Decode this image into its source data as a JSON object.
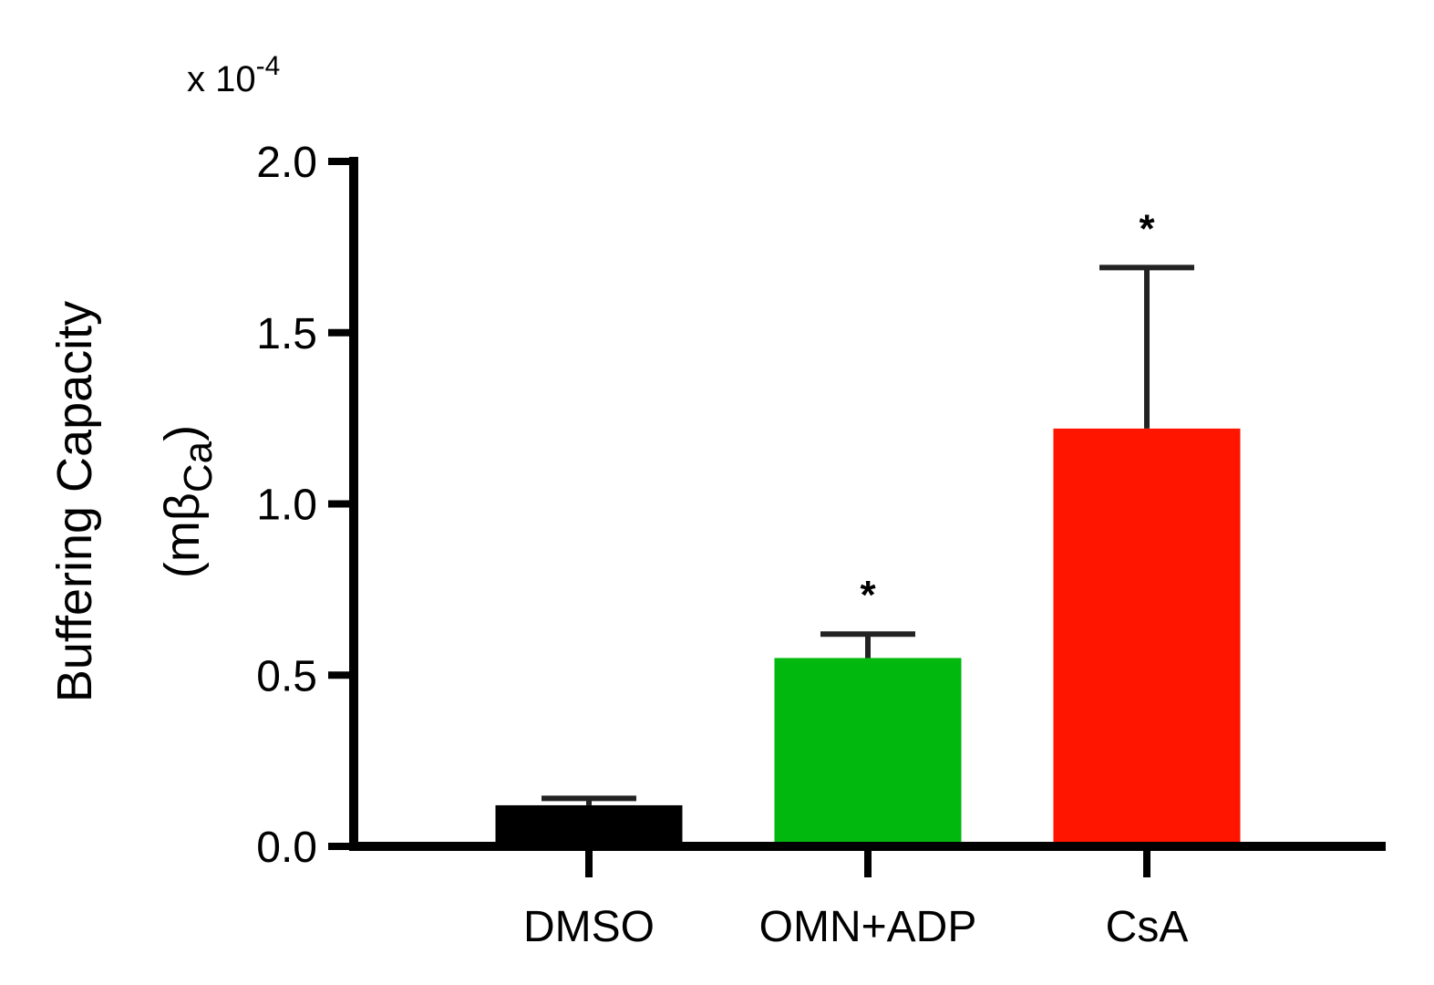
{
  "chart_data": {
    "type": "bar",
    "title": "",
    "categories": [
      "DMSO",
      "OMN+ADP",
      "CsA"
    ],
    "values": [
      0.12,
      0.55,
      1.22
    ],
    "errors": [
      0.02,
      0.07,
      0.47
    ],
    "colors": [
      "#000000",
      "#00b80e",
      "#ff1500"
    ],
    "significance": [
      "",
      "*",
      "*"
    ],
    "ylabel_line1": "Buffering Capacity",
    "ylabel_line2": "(mβ",
    "ylabel_sub": "Ca",
    "ylabel_close": ")",
    "y_multiplier_prefix": "x 10",
    "y_multiplier_exp": "-4",
    "ylim": [
      0,
      2.0
    ],
    "yticks": [
      0.0,
      0.5,
      1.0,
      1.5,
      2.0
    ],
    "ytick_labels": [
      "0.0",
      "0.5",
      "1.0",
      "1.5",
      "2.0"
    ],
    "grid": false,
    "legend": "none"
  }
}
